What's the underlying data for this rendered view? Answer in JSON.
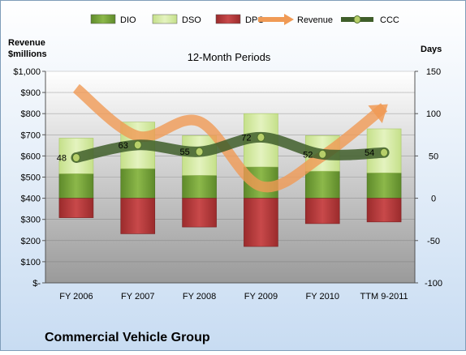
{
  "chart_data": {
    "type": "bar",
    "title": "12-Month Periods",
    "company": "Commercial Vehicle Group",
    "left_axis_label_line1": "Revenue",
    "left_axis_label_line2": "$millions",
    "right_axis_label": "Days",
    "categories": [
      "FY 2006",
      "FY 2007",
      "FY 2008",
      "FY 2009",
      "FY 2010",
      "TTM 9-2011"
    ],
    "left_ticks": [
      "$-",
      "$100",
      "$200",
      "$300",
      "$400",
      "$500",
      "$600",
      "$700",
      "$800",
      "$900",
      "$1,000"
    ],
    "right_ticks": [
      "-100",
      "-50",
      "0",
      "50",
      "100",
      "150"
    ],
    "ylim_days": [
      -100,
      150
    ],
    "ylim_revenue": [
      0,
      1000
    ],
    "legend": [
      {
        "key": "dio",
        "label": "DIO"
      },
      {
        "key": "dso",
        "label": "DSO"
      },
      {
        "key": "dpo",
        "label": "DPO"
      },
      {
        "key": "revenue",
        "label": "Revenue"
      },
      {
        "key": "ccc",
        "label": "CCC"
      }
    ],
    "legend_position": "top",
    "series": {
      "dio": [
        29,
        35,
        27,
        37,
        32,
        30
      ],
      "dso": [
        42,
        55,
        47,
        63,
        42,
        52
      ],
      "dpo": [
        -23,
        -42,
        -34,
        -57,
        -30,
        -28
      ],
      "ccc": [
        48,
        63,
        55,
        72,
        52,
        54
      ],
      "revenue": [
        920,
        694,
        763,
        457,
        600,
        830
      ]
    },
    "ccc_labels": [
      "48",
      "63",
      "55",
      "72",
      "52",
      "54"
    ],
    "colors": {
      "dio": "#7aa23b",
      "dso": "#d9ecaa",
      "dpo": "#b5393a",
      "revenue": "#f09a55",
      "ccc": "#3f5e2a",
      "plot_top": "#ffffff",
      "plot_bottom": "#9a9a9a",
      "bg_top": "#ffffff",
      "bg_bottom": "#c8dcf2"
    },
    "grid": true
  }
}
